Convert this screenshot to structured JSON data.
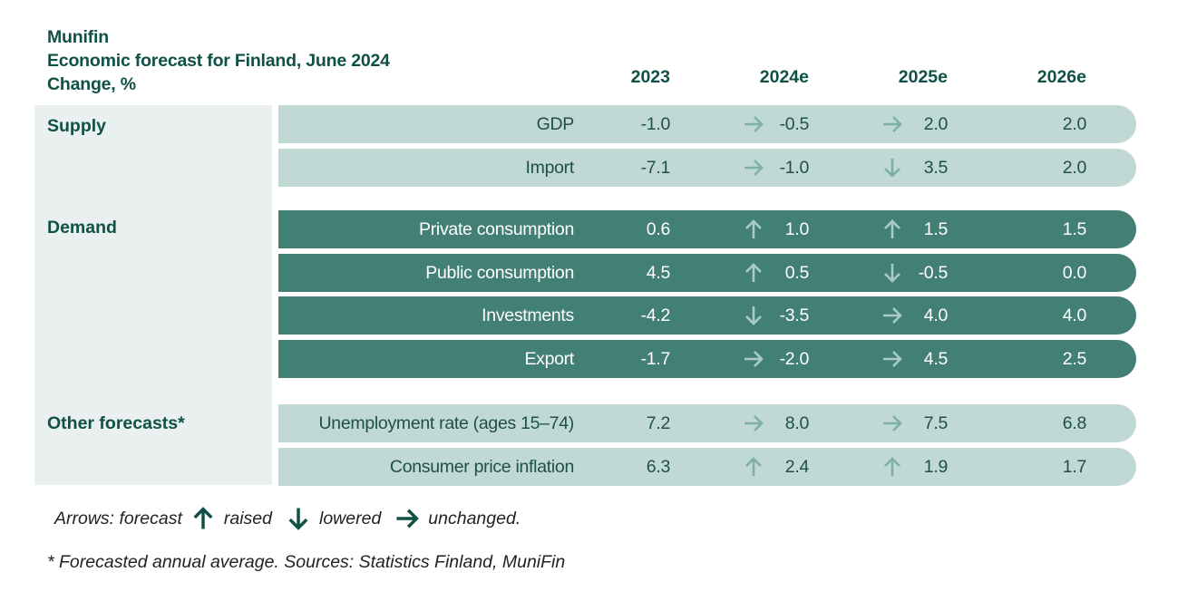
{
  "header": {
    "publisher": "Munifin",
    "title": "Economic forecast for Finland, June 2024",
    "unit": "Change, %"
  },
  "chart_data": {
    "type": "table",
    "columns": [
      "2023",
      "2024e",
      "2025e",
      "2026e"
    ],
    "sections": [
      {
        "name": "Supply",
        "rows": [
          {
            "label": "GDP",
            "values": [
              "-1.0",
              "-0.5",
              "2.0",
              "2.0"
            ],
            "arrows": [
              "unchanged",
              "unchanged"
            ]
          },
          {
            "label": "Import",
            "values": [
              "-7.1",
              "-1.0",
              "3.5",
              "2.0"
            ],
            "arrows": [
              "unchanged",
              "lowered"
            ]
          }
        ]
      },
      {
        "name": "Demand",
        "rows": [
          {
            "label": "Private consumption",
            "values": [
              "0.6",
              "1.0",
              "1.5",
              "1.5"
            ],
            "arrows": [
              "raised",
              "raised"
            ]
          },
          {
            "label": "Public consumption",
            "values": [
              "4.5",
              "0.5",
              "-0.5",
              "0.0"
            ],
            "arrows": [
              "raised",
              "lowered"
            ]
          },
          {
            "label": "Investments",
            "values": [
              "-4.2",
              "-3.5",
              "4.0",
              "4.0"
            ],
            "arrows": [
              "lowered",
              "unchanged"
            ]
          },
          {
            "label": "Export",
            "values": [
              "-1.7",
              "-2.0",
              "4.5",
              "2.5"
            ],
            "arrows": [
              "unchanged",
              "unchanged"
            ]
          }
        ]
      },
      {
        "name": "Other forecasts*",
        "rows": [
          {
            "label": "Unemployment rate (ages 15–74)",
            "values": [
              "7.2",
              "8.0",
              "7.5",
              "6.8"
            ],
            "arrows": [
              "unchanged",
              "unchanged"
            ]
          },
          {
            "label": "Consumer price inflation",
            "values": [
              "6.3",
              "2.4",
              "1.9",
              "1.7"
            ],
            "arrows": [
              "raised",
              "raised"
            ]
          }
        ]
      }
    ]
  },
  "legend": {
    "prefix": "Arrows: forecast",
    "raised": "raised",
    "lowered": "lowered",
    "unchanged": "unchanged."
  },
  "footnote": "* Forecasted annual average. Sources: Statistics Finland, MuniFin",
  "colors": {
    "heading": "#0f5147",
    "light_row": "#c1d9d5",
    "dark_row": "#427f75",
    "left_panel": "#e9f0ef"
  }
}
